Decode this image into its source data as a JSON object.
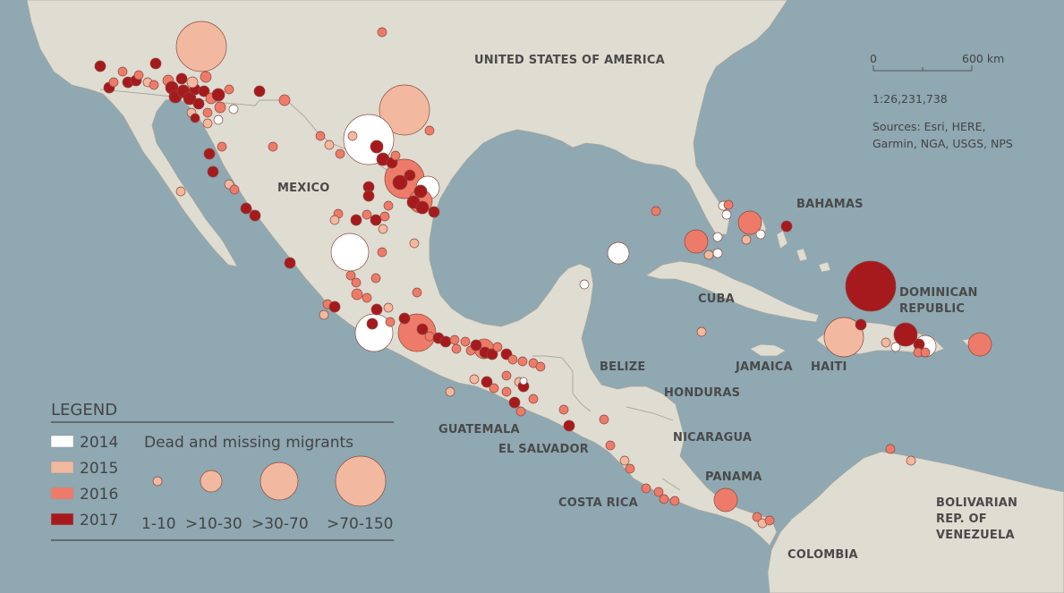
{
  "colors": {
    "sea": "#8fa8b2",
    "land": "#dfdcd2",
    "land_border": "#a9a69c",
    "year_2014": "#ffffff",
    "year_2015": "#f2b9a0",
    "year_2016": "#ee7b69",
    "year_2017": "#a61a1e",
    "marker_stroke": "#8a4a3e"
  },
  "labels": {
    "usa": "UNITED STATES OF AMERICA",
    "mexico": "MEXICO",
    "cuba": "CUBA",
    "bahamas": "BAHAMAS",
    "dominican_republic_1": "DOMINICAN",
    "dominican_republic_2": "REPUBLIC",
    "haiti": "HAITI",
    "jamaica": "JAMAICA",
    "belize": "BELIZE",
    "honduras": "HONDURAS",
    "guatemala": "GUATEMALA",
    "el_salvador": "EL SALVADOR",
    "nicaragua": "NICARAGUA",
    "costa_rica": "COSTA RICA",
    "panama": "PANAMA",
    "colombia": "COLOMBIA",
    "venezuela_1": "BOLIVARIAN",
    "venezuela_2": "REP. OF",
    "venezuela_3": "VENEZUELA"
  },
  "scale": {
    "start": "0",
    "end": "600 km",
    "ratio": "1:26,231,738"
  },
  "sources": {
    "line1": "Sources: Esri, HERE,",
    "line2": "Garmin, NGA, USGS, NPS"
  },
  "legend": {
    "title": "LEGEND",
    "subtitle": "Dead and missing migrants",
    "years": [
      {
        "label": "2014",
        "color": "#ffffff"
      },
      {
        "label": "2015",
        "color": "#f2b9a0"
      },
      {
        "label": "2016",
        "color": "#ee7b69"
      },
      {
        "label": "2017",
        "color": "#a61a1e"
      }
    ],
    "sizes": [
      {
        "label": "1-10"
      },
      {
        "label": ">10-30"
      },
      {
        "label": ">30-70"
      },
      {
        "label": ">70-150"
      }
    ]
  }
}
